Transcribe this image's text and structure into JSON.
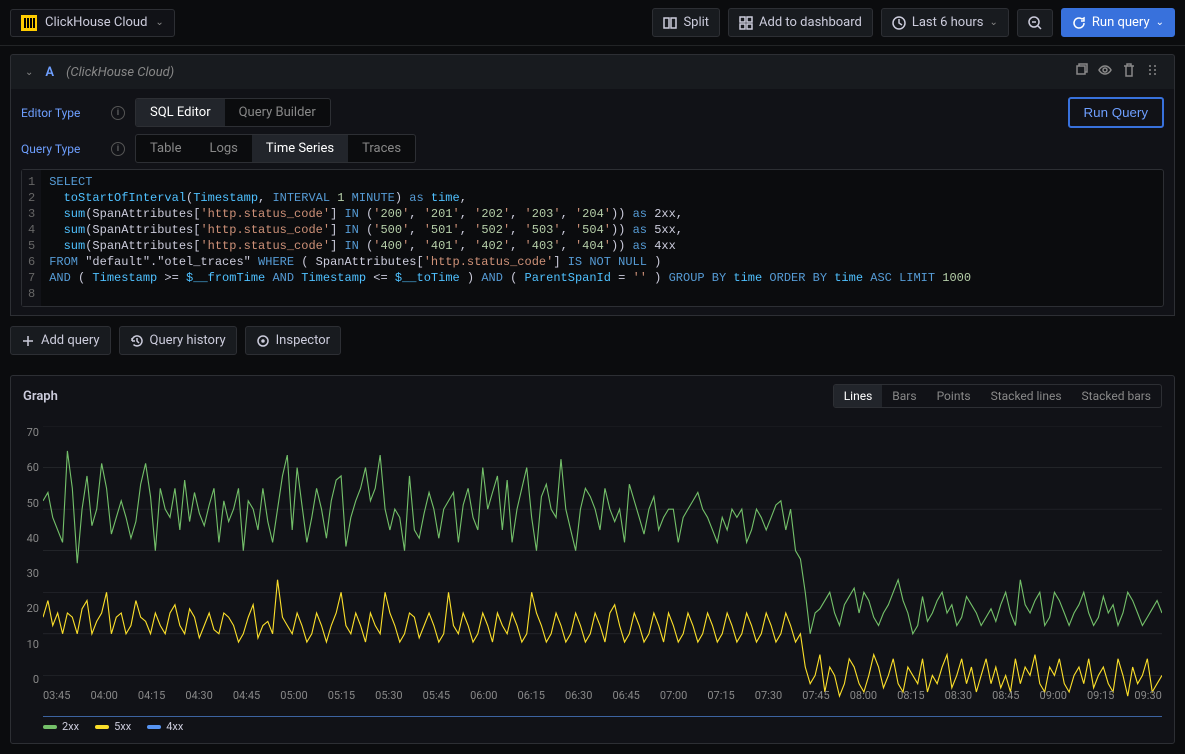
{
  "topbar": {
    "datasource": "ClickHouse Cloud",
    "split": "Split",
    "add_dashboard": "Add to dashboard",
    "time_range": "Last 6 hours",
    "run_query": "Run query"
  },
  "query_row": {
    "letter": "A",
    "ds_name": "(ClickHouse Cloud)",
    "editor_type_label": "Editor Type",
    "query_type_label": "Query Type",
    "editor_tabs": {
      "sql": "SQL Editor",
      "builder": "Query Builder"
    },
    "query_tabs": {
      "table": "Table",
      "logs": "Logs",
      "ts": "Time Series",
      "traces": "Traces"
    },
    "run_query_btn": "Run Query"
  },
  "sql": {
    "lines": [
      "SELECT",
      "  toStartOfInterval(Timestamp, INTERVAL 1 MINUTE) as time,",
      "  sum(SpanAttributes['http.status_code'] IN ('200', '201', '202', '203', '204')) as 2xx,",
      "  sum(SpanAttributes['http.status_code'] IN ('500', '501', '502', '503', '504')) as 5xx,",
      "  sum(SpanAttributes['http.status_code'] IN ('400', '401', '402', '403', '404')) as 4xx",
      "FROM \"default\".\"otel_traces\" WHERE ( SpanAttributes['http.status_code'] IS NOT NULL )",
      "AND ( Timestamp >= $__fromTime AND Timestamp <= $__toTime ) AND ( ParentSpanId = '' ) GROUP BY time ORDER BY time ASC LIMIT 1000",
      ""
    ]
  },
  "actions": {
    "add_query": "Add query",
    "history": "Query history",
    "inspector": "Inspector"
  },
  "panel": {
    "title": "Graph",
    "viz": {
      "lines": "Lines",
      "bars": "Bars",
      "points": "Points",
      "slines": "Stacked lines",
      "sbars": "Stacked bars"
    }
  },
  "chart": {
    "type": "line",
    "ylim": [
      0,
      70
    ],
    "yticks": [
      0,
      10,
      20,
      30,
      40,
      50,
      60,
      70
    ],
    "xticks": [
      "03:45",
      "04:00",
      "04:15",
      "04:30",
      "04:45",
      "05:00",
      "05:15",
      "05:30",
      "05:45",
      "06:00",
      "06:15",
      "06:30",
      "06:45",
      "07:00",
      "07:15",
      "07:30",
      "07:45",
      "08:00",
      "08:15",
      "08:30",
      "08:45",
      "09:00",
      "09:15",
      "09:30"
    ],
    "background_color": "#111217",
    "grid_color": "#2d2f34",
    "legend": [
      {
        "name": "2xx",
        "color": "#73bf69"
      },
      {
        "name": "5xx",
        "color": "#fade2a"
      },
      {
        "name": "4xx",
        "color": "#5794f2"
      }
    ],
    "series_2xx_color": "#73bf69",
    "series_5xx_color": "#fade2a",
    "series_4xx_color": "#5794f2",
    "series_2xx": [
      52,
      54,
      48,
      45,
      42,
      64,
      55,
      37,
      50,
      58,
      46,
      50,
      61,
      55,
      44,
      48,
      52,
      48,
      43,
      47,
      56,
      61,
      53,
      40,
      55,
      50,
      48,
      55,
      45,
      57,
      47,
      54,
      49,
      46,
      51,
      55,
      42,
      52,
      47,
      50,
      55,
      40,
      52,
      50,
      45,
      55,
      47,
      42,
      50,
      58,
      63,
      45,
      60,
      51,
      42,
      48,
      55,
      50,
      43,
      52,
      57,
      58,
      41,
      48,
      52,
      55,
      60,
      52,
      55,
      63,
      50,
      45,
      50,
      48,
      40,
      58,
      45,
      43,
      49,
      54,
      50,
      43,
      50,
      52,
      54,
      42,
      51,
      55,
      48,
      45,
      60,
      50,
      54,
      58,
      45,
      57,
      42,
      50,
      55,
      60,
      48,
      40,
      53,
      56,
      50,
      48,
      62,
      50,
      45,
      40,
      50,
      55,
      53,
      50,
      45,
      55,
      50,
      47,
      50,
      42,
      56,
      52,
      48,
      44,
      50,
      53,
      45,
      48,
      50,
      50,
      42,
      48,
      50,
      52,
      54,
      50,
      48,
      45,
      42,
      48,
      45,
      50,
      48,
      50,
      42,
      45,
      50,
      48,
      45,
      48,
      51,
      52,
      45,
      50,
      40,
      38,
      30,
      20,
      25,
      26,
      28,
      30,
      25,
      22,
      27,
      29,
      31,
      25,
      30,
      28,
      24,
      22,
      25,
      27,
      30,
      33,
      28,
      25,
      20,
      22,
      29,
      23,
      25,
      28,
      30,
      25,
      27,
      22,
      24,
      29,
      27,
      25,
      22,
      24,
      26,
      23,
      27,
      30,
      25,
      22,
      33,
      27,
      25,
      28,
      30,
      22,
      24,
      30,
      28,
      25,
      22,
      25,
      27,
      30,
      25,
      22,
      24,
      29,
      25,
      27,
      22,
      25,
      30,
      28,
      25,
      22,
      24,
      26,
      28,
      25
    ],
    "series_5xx": [
      24,
      28,
      22,
      25,
      20,
      25,
      24,
      20,
      26,
      28,
      20,
      23,
      25,
      30,
      20,
      24,
      25,
      20,
      22,
      28,
      24,
      23,
      20,
      25,
      22,
      20,
      25,
      27,
      22,
      20,
      26,
      24,
      19,
      22,
      25,
      21,
      20,
      25,
      24,
      22,
      18,
      20,
      24,
      27,
      19,
      22,
      23,
      20,
      33,
      24,
      22,
      20,
      25,
      22,
      18,
      20,
      25,
      22,
      18,
      22,
      25,
      30,
      22,
      20,
      25,
      22,
      18,
      25,
      22,
      20,
      30,
      25,
      22,
      18,
      20,
      25,
      24,
      19,
      22,
      25,
      22,
      18,
      20,
      30,
      22,
      20,
      25,
      22,
      18,
      20,
      25,
      22,
      18,
      25,
      22,
      20,
      25,
      22,
      18,
      20,
      30,
      25,
      22,
      18,
      20,
      25,
      22,
      18,
      20,
      25,
      22,
      18,
      20,
      25,
      22,
      18,
      25,
      27,
      22,
      18,
      20,
      25,
      22,
      18,
      20,
      25,
      22,
      18,
      25,
      22,
      18,
      20,
      25,
      22,
      18,
      20,
      25,
      22,
      18,
      20,
      25,
      22,
      18,
      20,
      25,
      22,
      18,
      20,
      25,
      22,
      18,
      20,
      25,
      22,
      18,
      20,
      12,
      8,
      10,
      15,
      6,
      12,
      10,
      5,
      8,
      14,
      12,
      8,
      6,
      10,
      15,
      12,
      7,
      10,
      14,
      8,
      6,
      12,
      10,
      8,
      14,
      6,
      10,
      8,
      12,
      15,
      7,
      10,
      14,
      8,
      12,
      6,
      10,
      14,
      8,
      12,
      7,
      10,
      6,
      14,
      8,
      12,
      10,
      15,
      8,
      6,
      12,
      10,
      14,
      8,
      6,
      10,
      12,
      8,
      14,
      7,
      10,
      12,
      8,
      6,
      14,
      10,
      5,
      12,
      8,
      10,
      14,
      6,
      8,
      10
    ],
    "series_4xx": [
      0,
      0,
      0,
      0,
      0,
      0,
      0,
      0,
      0,
      0,
      0,
      0,
      0,
      0,
      0,
      0,
      0,
      0,
      0,
      0,
      0,
      0,
      0,
      0,
      0,
      0,
      0,
      0,
      0,
      0,
      0,
      0,
      0,
      0,
      0,
      0,
      0,
      0,
      0,
      0,
      0,
      0,
      0,
      0,
      0,
      0,
      0,
      0,
      0,
      0,
      0,
      0,
      0,
      0,
      0,
      0,
      0,
      0,
      0,
      0,
      0,
      0,
      0,
      0,
      0,
      0,
      0,
      0,
      0,
      0,
      0,
      0,
      0,
      0,
      0,
      0,
      0,
      0,
      0,
      0,
      0,
      0,
      0,
      0,
      0,
      0,
      0,
      0,
      0,
      0,
      0,
      0,
      0,
      0,
      0,
      0,
      0,
      0,
      0,
      0,
      0,
      0,
      0,
      0,
      0,
      0,
      0,
      0,
      0,
      0,
      0,
      0,
      0,
      0,
      0,
      0,
      0,
      0,
      0,
      0,
      0,
      0,
      0,
      0,
      0,
      0,
      0,
      0,
      0,
      0,
      0,
      0,
      0,
      0,
      0,
      0,
      0,
      0,
      0,
      0,
      0,
      0,
      0,
      0,
      0,
      0,
      0,
      0,
      0,
      0,
      0,
      0,
      0,
      0,
      0,
      0,
      0,
      0,
      0,
      0,
      0,
      0,
      0,
      0,
      0,
      0,
      0,
      0,
      0,
      0,
      0,
      0,
      0,
      0,
      0,
      0,
      0,
      0,
      0,
      0,
      0,
      0,
      0,
      0,
      0,
      0,
      0,
      0,
      0,
      0,
      0,
      0,
      0,
      0,
      0,
      0,
      0,
      0,
      0,
      0,
      0,
      0,
      0,
      0,
      0,
      0,
      0,
      0,
      0,
      0,
      0,
      0,
      0,
      0,
      0,
      0,
      0,
      0,
      0,
      0,
      0,
      0,
      0,
      0,
      0,
      0,
      0,
      0,
      0,
      0
    ]
  }
}
